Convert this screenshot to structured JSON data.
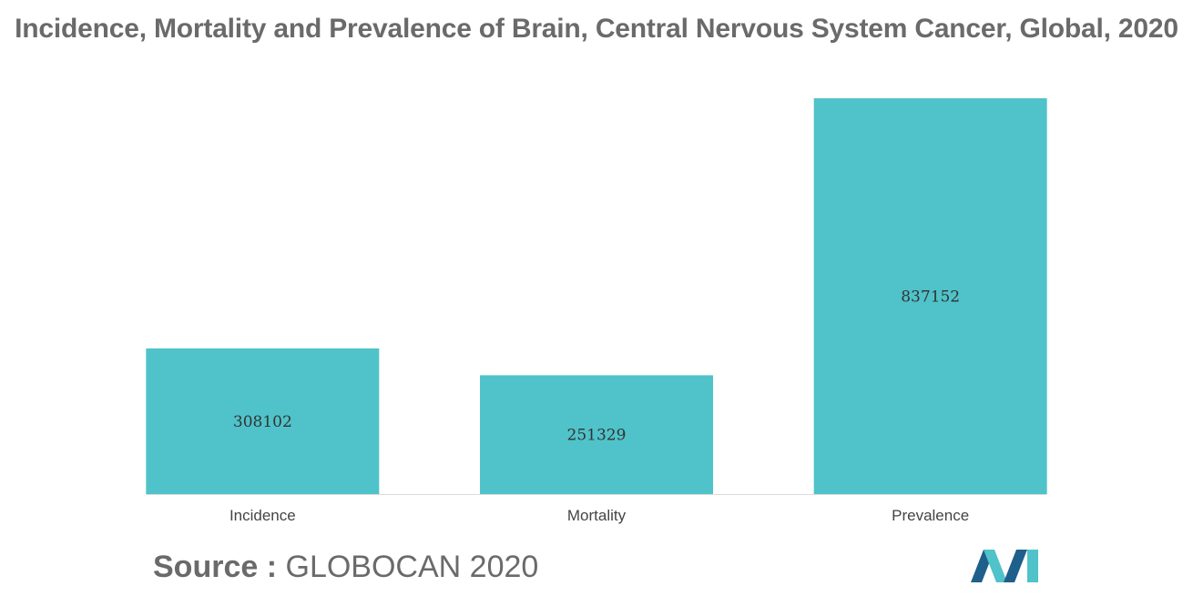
{
  "chart_data": {
    "type": "bar",
    "title": "Incidence, Mortality and Prevalence of Brain, Central Nervous System Cancer, Global, 2020",
    "categories": [
      "Incidence",
      "Mortality",
      "Prevalence"
    ],
    "values": [
      308102,
      251329,
      837152
    ],
    "xlabel": "",
    "ylabel": "",
    "ylim": [
      0,
      837152
    ],
    "grid": false,
    "legend": "none",
    "bar_color": "#4fc3c9",
    "data_labels": true
  },
  "source": {
    "label": "Source :",
    "value": "GLOBOCAN 2020"
  },
  "colors": {
    "text": "#6a6a6a",
    "logo_dark": "#1f5f8b",
    "logo_light": "#4fc3c9"
  }
}
